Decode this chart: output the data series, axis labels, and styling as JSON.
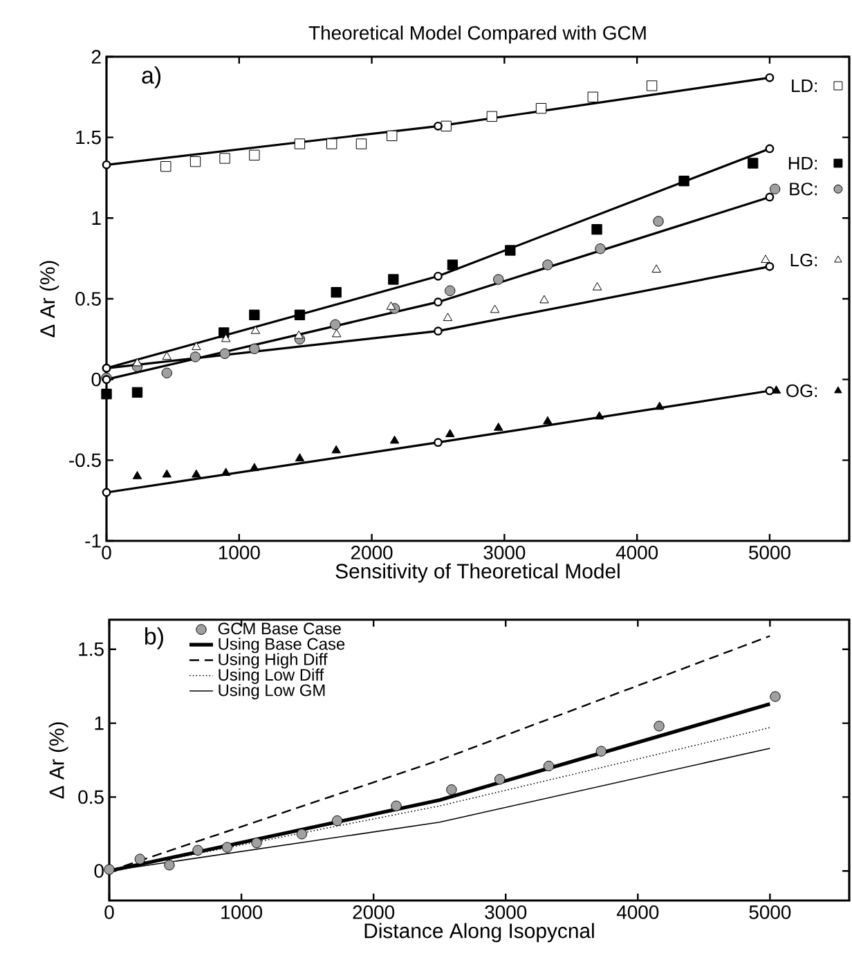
{
  "chart_data": [
    {
      "type": "scatter",
      "title": "Theoretical Model Compared with GCM",
      "xlabel": "Sensitivity of Theoretical Model",
      "ylabel": "Δ Ar (%)",
      "annotations": [
        "a)"
      ],
      "xlim": [
        0,
        5600
      ],
      "ylim": [
        -1,
        2
      ],
      "xticks": [
        0,
        1000,
        2000,
        3000,
        4000,
        5000
      ],
      "yticks": [
        -1,
        -0.5,
        0,
        0.5,
        1,
        1.5,
        2
      ],
      "grid": false,
      "legend": "right",
      "series": [
        {
          "name": "LD:",
          "marker": "square",
          "color": "#ffffff",
          "x": [
            447,
            670,
            892,
            1115,
            1457,
            1698,
            1921,
            2152,
            2561,
            2906,
            3277,
            3667,
            4112
          ],
          "values": [
            1.32,
            1.35,
            1.37,
            1.39,
            1.46,
            1.46,
            1.46,
            1.51,
            1.57,
            1.63,
            1.68,
            1.75,
            1.82
          ]
        },
        {
          "type": "line",
          "marker": "circle",
          "color": "#000000",
          "x": [
            0,
            2500,
            5000
          ],
          "values": [
            1.33,
            1.57,
            1.87
          ]
        },
        {
          "name": "HD:",
          "marker": "square",
          "color": "#000000",
          "x": [
            0,
            232,
            885,
            1115,
            1457,
            1732,
            2163,
            2609,
            3044,
            3697,
            4354,
            4874
          ],
          "values": [
            -0.09,
            -0.08,
            0.29,
            0.4,
            0.4,
            0.54,
            0.62,
            0.71,
            0.8,
            0.93,
            1.23,
            1.34
          ]
        },
        {
          "type": "line",
          "marker": "circle",
          "color": "#000000",
          "x": [
            0,
            2500,
            5000
          ],
          "values": [
            0.07,
            0.64,
            1.43
          ]
        },
        {
          "name": "BC:",
          "marker": "circle",
          "color": "#a0a0a0",
          "x": [
            0,
            232,
            455,
            670,
            892,
            1115,
            1457,
            1725,
            2172,
            2590,
            2955,
            3326,
            3723,
            4161,
            5040
          ],
          "values": [
            0.01,
            0.08,
            0.04,
            0.14,
            0.16,
            0.19,
            0.25,
            0.34,
            0.44,
            0.55,
            0.62,
            0.71,
            0.81,
            0.98,
            1.18
          ]
        },
        {
          "type": "line",
          "marker": "circle",
          "color": "#000000",
          "x": [
            0,
            2500,
            5000
          ],
          "values": [
            0.0,
            0.48,
            1.13
          ]
        },
        {
          "name": "LG:",
          "marker": "triangle",
          "color": "#ffffff",
          "x": [
            232,
            455,
            677,
            900,
            1123,
            1450,
            1735,
            2145,
            2573,
            2928,
            3300,
            3700,
            4146,
            4969
          ],
          "values": [
            0.1,
            0.14,
            0.2,
            0.25,
            0.3,
            0.27,
            0.28,
            0.45,
            0.38,
            0.43,
            0.49,
            0.57,
            0.68,
            0.74
          ]
        },
        {
          "type": "line",
          "marker": "circle",
          "color": "#000000",
          "x": [
            0,
            2500,
            5000
          ],
          "values": [
            0.07,
            0.3,
            0.7
          ]
        },
        {
          "name": "OG:",
          "marker": "triangle",
          "color": "#000000",
          "x": [
            232,
            455,
            677,
            900,
            1115,
            1457,
            1732,
            2172,
            2590,
            2955,
            3326,
            3716,
            4170,
            5050
          ],
          "values": [
            -0.6,
            -0.59,
            -0.59,
            -0.58,
            -0.55,
            -0.49,
            -0.44,
            -0.38,
            -0.34,
            -0.3,
            -0.26,
            -0.23,
            -0.17,
            -0.07
          ]
        },
        {
          "type": "line",
          "marker": "circle",
          "color": "#000000",
          "x": [
            0,
            2500,
            5000
          ],
          "values": [
            -0.7,
            -0.39,
            -0.07
          ]
        }
      ]
    },
    {
      "type": "line",
      "xlabel": "Distance Along Isopycnal",
      "ylabel": "Δ Ar (%)",
      "annotations": [
        "b)"
      ],
      "xlim": [
        0,
        5600
      ],
      "ylim": [
        -0.2,
        1.7
      ],
      "xticks": [
        0,
        1000,
        2000,
        3000,
        4000,
        5000
      ],
      "yticks": [
        0,
        0.5,
        1,
        1.5
      ],
      "grid": false,
      "legend": "top left",
      "series": [
        {
          "name": "GCM Base Case",
          "type": "scatter",
          "marker": "circle",
          "color": "#a0a0a0",
          "x": [
            0,
            232,
            455,
            670,
            892,
            1115,
            1457,
            1725,
            2172,
            2590,
            2955,
            3326,
            3723,
            4161,
            5040
          ],
          "values": [
            0.01,
            0.08,
            0.04,
            0.14,
            0.16,
            0.19,
            0.25,
            0.34,
            0.44,
            0.55,
            0.62,
            0.71,
            0.81,
            0.98,
            1.18
          ]
        },
        {
          "name": "Using Base Case",
          "line_style": "solid",
          "color": "#000000",
          "x": [
            0,
            2500,
            5000
          ],
          "values": [
            0.0,
            0.48,
            1.13
          ]
        },
        {
          "name": "Using High Diff",
          "line_style": "dashed",
          "color": "#000000",
          "x": [
            0,
            2500,
            5000
          ],
          "values": [
            0.0,
            0.75,
            1.59
          ]
        },
        {
          "name": "Using Low Diff",
          "line_style": "dotted",
          "color": "#000000",
          "x": [
            0,
            2500,
            5000
          ],
          "values": [
            0.0,
            0.44,
            0.97
          ]
        },
        {
          "name": "Using Low GM",
          "line_style": "solid",
          "color": "#000000",
          "x": [
            0,
            2500,
            5000
          ],
          "values": [
            0.0,
            0.33,
            0.83
          ]
        }
      ]
    }
  ]
}
